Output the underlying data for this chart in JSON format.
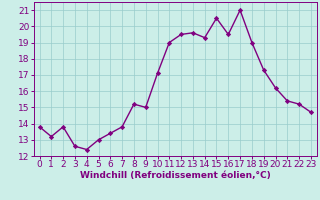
{
  "hours": [
    0,
    1,
    2,
    3,
    4,
    5,
    6,
    7,
    8,
    9,
    10,
    11,
    12,
    13,
    14,
    15,
    16,
    17,
    18,
    19,
    20,
    21,
    22,
    23
  ],
  "values": [
    13.8,
    13.2,
    13.8,
    12.6,
    12.4,
    13.0,
    13.4,
    13.8,
    15.2,
    15.0,
    17.1,
    19.0,
    19.5,
    19.6,
    19.3,
    20.5,
    19.5,
    21.0,
    19.0,
    17.3,
    16.2,
    15.4,
    15.2,
    14.7
  ],
  "line_color": "#800080",
  "marker": "D",
  "marker_size": 2.2,
  "bg_color": "#cceee8",
  "grid_color": "#99cccc",
  "xlabel": "Windchill (Refroidissement éolien,°C)",
  "xlabel_color": "#800080",
  "tick_color": "#800080",
  "spine_color": "#800080",
  "ylim": [
    12,
    21.5
  ],
  "xlim": [
    -0.5,
    23.5
  ],
  "yticks": [
    12,
    13,
    14,
    15,
    16,
    17,
    18,
    19,
    20,
    21
  ],
  "xticks": [
    0,
    1,
    2,
    3,
    4,
    5,
    6,
    7,
    8,
    9,
    10,
    11,
    12,
    13,
    14,
    15,
    16,
    17,
    18,
    19,
    20,
    21,
    22,
    23
  ],
  "line_width": 1.0,
  "xlabel_fontsize": 6.5,
  "tick_fontsize": 6.5
}
